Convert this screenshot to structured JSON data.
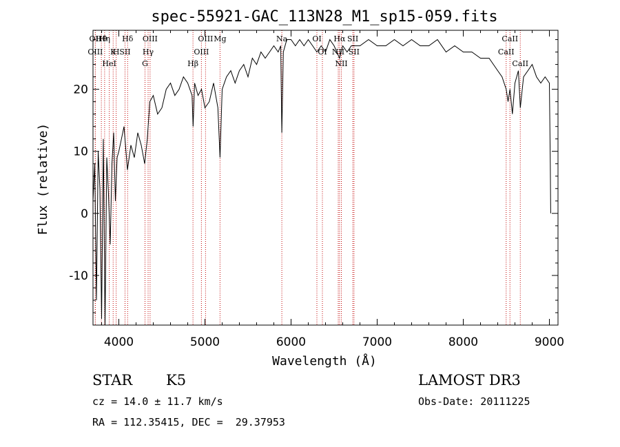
{
  "chart_data": {
    "type": "line",
    "title": "spec-55921-GAC_113N28_M1_sp15-059.fits",
    "xlabel": "Wavelength (Å)",
    "ylabel": "Flux (relative)",
    "xlim": [
      3700,
      9100
    ],
    "ylim": [
      -18,
      29.5
    ],
    "xticks": [
      4000,
      5000,
      6000,
      7000,
      8000,
      9000
    ],
    "yticks": [
      -10,
      0,
      10,
      20
    ],
    "grid": false,
    "series": [
      {
        "name": "spectrum",
        "x": [
          3700,
          3720,
          3740,
          3760,
          3780,
          3800,
          3820,
          3840,
          3860,
          3880,
          3900,
          3920,
          3940,
          3960,
          3980,
          4000,
          4030,
          4060,
          4100,
          4140,
          4180,
          4220,
          4260,
          4300,
          4330,
          4360,
          4400,
          4450,
          4500,
          4550,
          4600,
          4650,
          4700,
          4750,
          4800,
          4850,
          4862,
          4880,
          4920,
          4960,
          5000,
          5050,
          5100,
          5150,
          5175,
          5200,
          5250,
          5300,
          5350,
          5400,
          5450,
          5500,
          5550,
          5600,
          5650,
          5700,
          5750,
          5800,
          5850,
          5880,
          5893,
          5910,
          5950,
          6000,
          6050,
          6100,
          6150,
          6200,
          6250,
          6300,
          6350,
          6400,
          6450,
          6500,
          6563,
          6600,
          6650,
          6700,
          6750,
          6800,
          6900,
          7000,
          7100,
          7200,
          7300,
          7400,
          7500,
          7600,
          7700,
          7800,
          7900,
          8000,
          8100,
          8200,
          8300,
          8400,
          8450,
          8498,
          8520,
          8542,
          8570,
          8600,
          8640,
          8662,
          8700,
          8750,
          8800,
          8850,
          8900,
          8950,
          9000,
          9010,
          9015
        ],
        "values": [
          2,
          8,
          -14,
          10,
          4,
          -17,
          12,
          -18,
          9,
          3,
          -5,
          8,
          13,
          2,
          9,
          10,
          12,
          14,
          7,
          11,
          9,
          13,
          11,
          8,
          12,
          18,
          19,
          16,
          17,
          20,
          21,
          19,
          20,
          22,
          21,
          19,
          14,
          21,
          19,
          20,
          17,
          18,
          21,
          17,
          9,
          20,
          22,
          23,
          21,
          23,
          24,
          22,
          25,
          24,
          26,
          25,
          26,
          27,
          26,
          27,
          13,
          26,
          28,
          28,
          27,
          28,
          27,
          28,
          27,
          26,
          27,
          26,
          28,
          27,
          25,
          27,
          26,
          27,
          27,
          27,
          28,
          27,
          27,
          28,
          27,
          28,
          27,
          27,
          28,
          26,
          27,
          26,
          26,
          25,
          25,
          23,
          22,
          20,
          18,
          20,
          16,
          21,
          23,
          17,
          22,
          23,
          24,
          22,
          21,
          22,
          21,
          8,
          0
        ]
      }
    ],
    "spectral_lines": [
      {
        "label": "Hθ",
        "wl": 3797
      },
      {
        "label": "OII",
        "wl": 3727
      },
      {
        "label": "OIII",
        "wl": 3727
      },
      {
        "label": "K",
        "wl": 3934
      },
      {
        "label": "HeI",
        "wl": 3889
      },
      {
        "label": "Hη",
        "wl": 3835
      },
      {
        "label": "Hδ",
        "wl": 4102
      },
      {
        "label": "SII",
        "wl": 4072
      },
      {
        "label": "H",
        "wl": 3969
      },
      {
        "label": "OIII",
        "wl": 4363
      },
      {
        "label": "Hγ",
        "wl": 4340
      },
      {
        "label": "G",
        "wl": 4304
      },
      {
        "label": "OIII",
        "wl": 5007
      },
      {
        "label": "OIII",
        "wl": 4959
      },
      {
        "label": "Hβ",
        "wl": 4861
      },
      {
        "label": "Mg",
        "wl": 5175
      },
      {
        "label": "Na",
        "wl": 5893
      },
      {
        "label": "OI",
        "wl": 6300
      },
      {
        "label": "OI",
        "wl": 6364
      },
      {
        "label": "Hα",
        "wl": 6563
      },
      {
        "label": "SII",
        "wl": 6717
      },
      {
        "label": "NII",
        "wl": 6548
      },
      {
        "label": "NII",
        "wl": 6584
      },
      {
        "label": "SII",
        "wl": 6731
      },
      {
        "label": "CaII",
        "wl": 8542
      },
      {
        "label": "CaII",
        "wl": 8498
      },
      {
        "label": "CaII",
        "wl": 8662
      }
    ]
  },
  "info": {
    "class": "STAR",
    "subclass": "K5",
    "survey": "LAMOST DR3",
    "cz": "cz = 14.0 ± 11.7 km/s",
    "obs_date": "Obs-Date: 20111225",
    "radec": "RA = 112.35415, DEC =  29.37953"
  },
  "colors": {
    "spectrum": "#000000",
    "line_marker": "#c00000",
    "axes": "#000000"
  }
}
